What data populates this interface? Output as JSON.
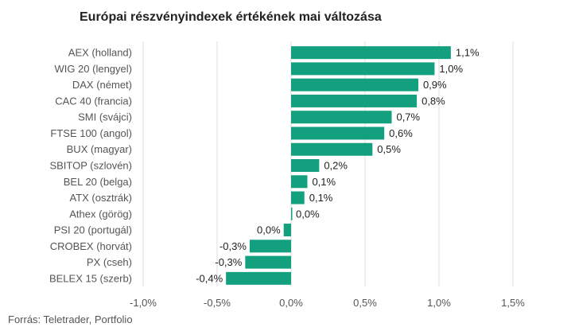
{
  "chart_data": {
    "type": "bar",
    "orientation": "horizontal",
    "title": "Európai részvényindexek értékének mai változása",
    "categories": [
      "AEX (holland)",
      "WIG 20 (lengyel)",
      "DAX (német)",
      "CAC 40 (francia)",
      "SMI (svájci)",
      "FTSE 100 (angol)",
      "BUX (magyar)",
      "SBITOP (szlovén)",
      "BEL 20 (belga)",
      "ATX (osztrák)",
      "Athex (görög)",
      "PSI 20 (portugál)",
      "CROBEX (horvát)",
      "PX (cseh)",
      "BELEX 15 (szerb)"
    ],
    "values": [
      1.08,
      0.97,
      0.86,
      0.85,
      0.68,
      0.63,
      0.55,
      0.19,
      0.11,
      0.09,
      0.0,
      -0.05,
      -0.28,
      -0.31,
      -0.44
    ],
    "value_labels": [
      "1,1%",
      "1,0%",
      "0,9%",
      "0,8%",
      "0,7%",
      "0,6%",
      "0,5%",
      "0,2%",
      "0,1%",
      "0,1%",
      "0,0%",
      "0,0%",
      "-0,3%",
      "-0,3%",
      "-0,4%"
    ],
    "xlim": [
      -1.0,
      1.5
    ],
    "xticks": [
      -1.0,
      -0.5,
      0.0,
      0.5,
      1.0,
      1.5
    ],
    "xtick_labels": [
      "-1,0%",
      "-0,5%",
      "0,0%",
      "0,5%",
      "1,0%",
      "1,5%"
    ],
    "grid": true,
    "bar_color": "#13a07f",
    "grid_color": "#dddddd",
    "source": "Forrás: Teletrader, Portfolio"
  }
}
